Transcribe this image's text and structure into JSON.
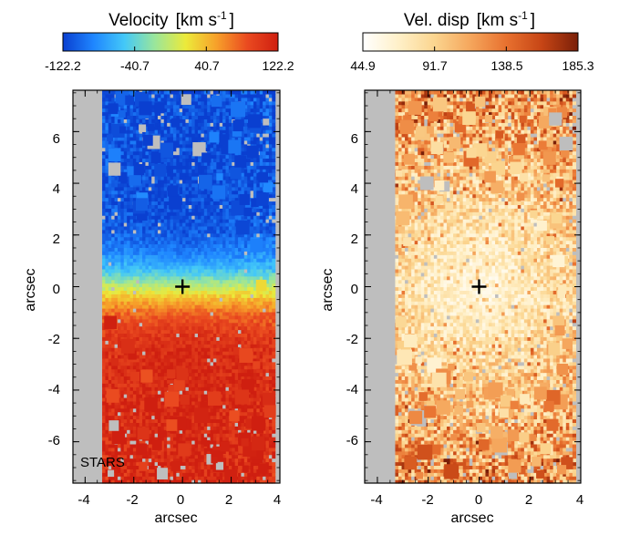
{
  "chart_data": [
    {
      "type": "heatmap",
      "title_main": "Velocity",
      "title_unit_pre": "[km s",
      "title_unit_sup": "-1",
      "title_unit_post": "]",
      "colorbar": {
        "min": -122.2,
        "max": 122.2,
        "tick_labels": [
          "-122.2",
          "-40.7",
          "40.7",
          "122.2"
        ],
        "tick_values": [
          -122.2,
          -40.7,
          40.7,
          122.2
        ],
        "colors": [
          "#0a3fd0",
          "#1f86ff",
          "#43c8f8",
          "#9be69a",
          "#ecea3a",
          "#f7a02a",
          "#ea4a20",
          "#cf1f10"
        ]
      },
      "xlabel": "arcsec",
      "ylabel": "arcsec",
      "xlim": [
        -4.5,
        4
      ],
      "ylim": [
        -7.6,
        7.6
      ],
      "xticks": [
        -4,
        -2,
        0,
        2,
        4
      ],
      "xtick_labels": [
        "-4",
        "-2",
        "0",
        "2",
        "4"
      ],
      "yticks": [
        -6,
        -4,
        -2,
        0,
        2,
        4,
        6
      ],
      "ytick_labels": [
        "-6",
        "-4",
        "-2",
        "0",
        "2",
        "4",
        "6"
      ],
      "data_extent_x": [
        -3.3,
        3.8
      ],
      "center_marker": [
        0,
        0
      ],
      "annotation": "STARS",
      "field": "velocity"
    },
    {
      "type": "heatmap",
      "title_main": "Vel. disp",
      "title_unit_pre": "[km s",
      "title_unit_sup": "-1",
      "title_unit_post": "]",
      "colorbar": {
        "min": 44.9,
        "max": 185.3,
        "tick_labels": [
          "44.9",
          "91.7",
          "138.5",
          "185.3"
        ],
        "tick_values": [
          44.9,
          91.7,
          138.5,
          185.3
        ],
        "colors": [
          "#ffffff",
          "#fff0c8",
          "#fbd58f",
          "#f5a65c",
          "#e8712f",
          "#c64515",
          "#7a1f08"
        ]
      },
      "xlabel": "arcsec",
      "ylabel": "arcsec",
      "xlim": [
        -4.5,
        4
      ],
      "ylim": [
        -7.6,
        7.6
      ],
      "xticks": [
        -4,
        -2,
        0,
        2,
        4
      ],
      "xtick_labels": [
        "-4",
        "-2",
        "0",
        "2",
        "4"
      ],
      "yticks": [
        -6,
        -4,
        -2,
        0,
        2,
        4,
        6
      ],
      "ytick_labels": [
        "-6",
        "-4",
        "-2",
        "0",
        "2",
        "4",
        "6"
      ],
      "data_extent_x": [
        -3.3,
        3.8
      ],
      "center_marker": [
        0,
        0
      ],
      "field": "dispersion"
    }
  ],
  "colors": {
    "masked": "#bebebe",
    "axes": "#000000"
  }
}
